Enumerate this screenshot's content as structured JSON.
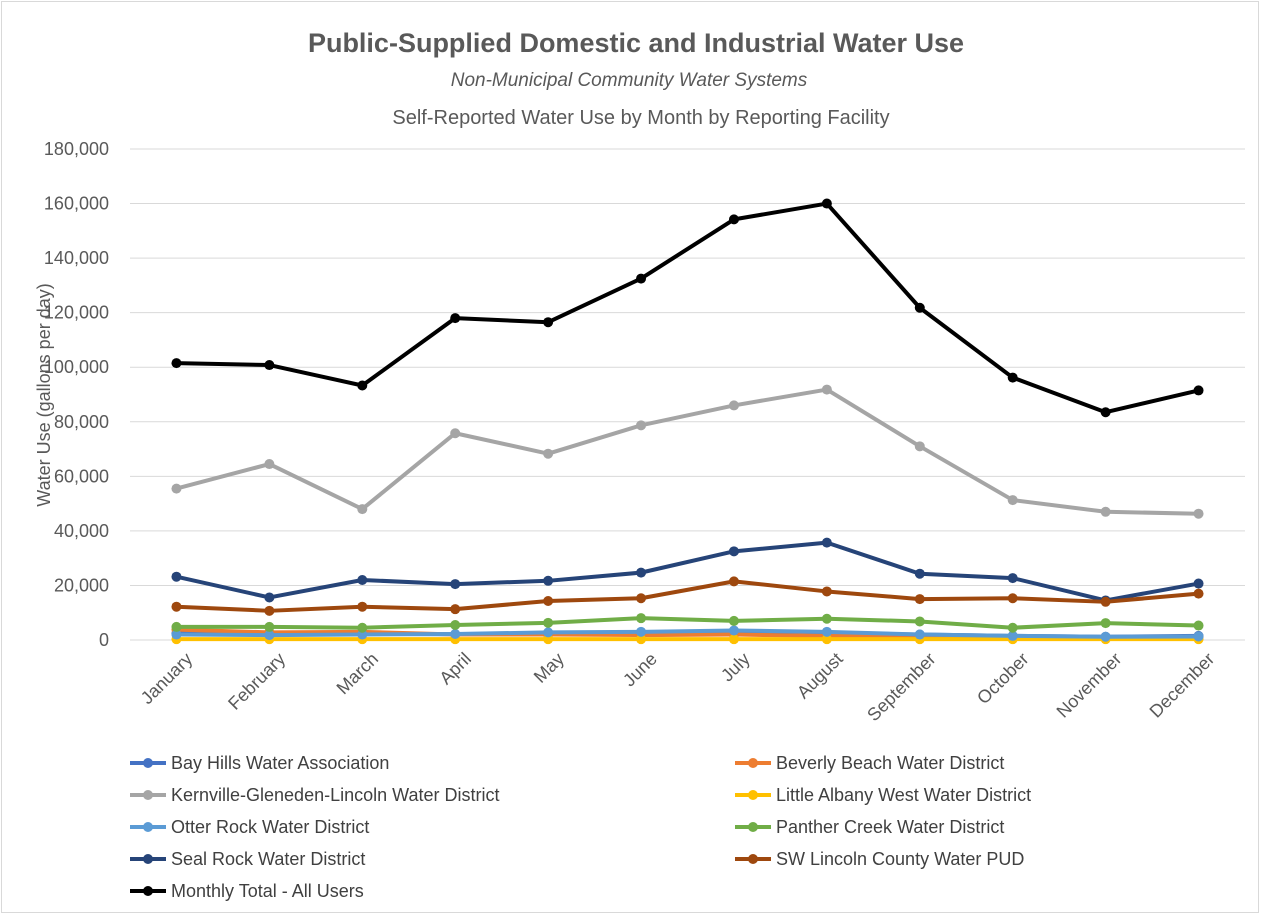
{
  "chart_data": {
    "type": "line",
    "title": "Public-Supplied Domestic and Industrial Water Use",
    "subtitle": "Non-Municipal Community Water Systems",
    "subtitle2": "Self-Reported Water Use by Month by Reporting Facility",
    "xlabel": "",
    "ylabel": "Water Use (gallons per day)",
    "ylim": [
      0,
      180000
    ],
    "yticks": [
      0,
      20000,
      40000,
      60000,
      80000,
      100000,
      120000,
      140000,
      160000,
      180000
    ],
    "ytick_labels": [
      "0",
      "20,000",
      "40,000",
      "60,000",
      "80,000",
      "100,000",
      "120,000",
      "140,000",
      "160,000",
      "180,000"
    ],
    "grid": true,
    "legend_position": "bottom",
    "categories": [
      "January",
      "February",
      "March",
      "April",
      "May",
      "June",
      "July",
      "August",
      "September",
      "October",
      "November",
      "December"
    ],
    "series": [
      {
        "name": "Bay Hills Water Association",
        "color": "#4472c4",
        "values": [
          2500,
          2200,
          2300,
          2100,
          2300,
          2300,
          2600,
          2500,
          2000,
          1500,
          1200,
          1500
        ]
      },
      {
        "name": "Beverly Beach Water District",
        "color": "#ed7d31",
        "values": [
          3800,
          2800,
          3000,
          2000,
          2000,
          1800,
          2000,
          1500,
          1500,
          1200,
          1000,
          1200
        ]
      },
      {
        "name": "Kernville-Gleneden-Lincoln Water District",
        "color": "#a5a5a5",
        "values": [
          55500,
          64500,
          48000,
          75800,
          68300,
          78700,
          86000,
          91800,
          71000,
          51300,
          47000,
          46300
        ]
      },
      {
        "name": "Little Albany West Water District",
        "color": "#ffc000",
        "values": [
          300,
          300,
          300,
          300,
          300,
          300,
          300,
          300,
          300,
          300,
          300,
          300
        ]
      },
      {
        "name": "Otter Rock Water District",
        "color": "#5b9bd5",
        "values": [
          2000,
          1800,
          2000,
          2200,
          2800,
          3000,
          3500,
          3000,
          2000,
          1500,
          1200,
          1300
        ]
      },
      {
        "name": "Panther Creek Water District",
        "color": "#70ad47",
        "values": [
          4800,
          4800,
          4500,
          5500,
          6300,
          8000,
          7000,
          7800,
          6800,
          4500,
          6200,
          5300
        ]
      },
      {
        "name": "Seal Rock Water District",
        "color": "#264478",
        "values": [
          23200,
          15600,
          22000,
          20500,
          21700,
          24700,
          32500,
          35700,
          24300,
          22700,
          14500,
          20700
        ]
      },
      {
        "name": "SW Lincoln County Water PUD",
        "color": "#9e480e",
        "values": [
          12200,
          10700,
          12200,
          11300,
          14300,
          15300,
          21500,
          17800,
          15000,
          15300,
          14000,
          17000
        ]
      },
      {
        "name": "Monthly Total - All Users",
        "color": "#000000",
        "values": [
          101500,
          100800,
          93300,
          118000,
          116500,
          132500,
          154200,
          160000,
          121800,
          96200,
          83500,
          91500
        ]
      }
    ]
  }
}
